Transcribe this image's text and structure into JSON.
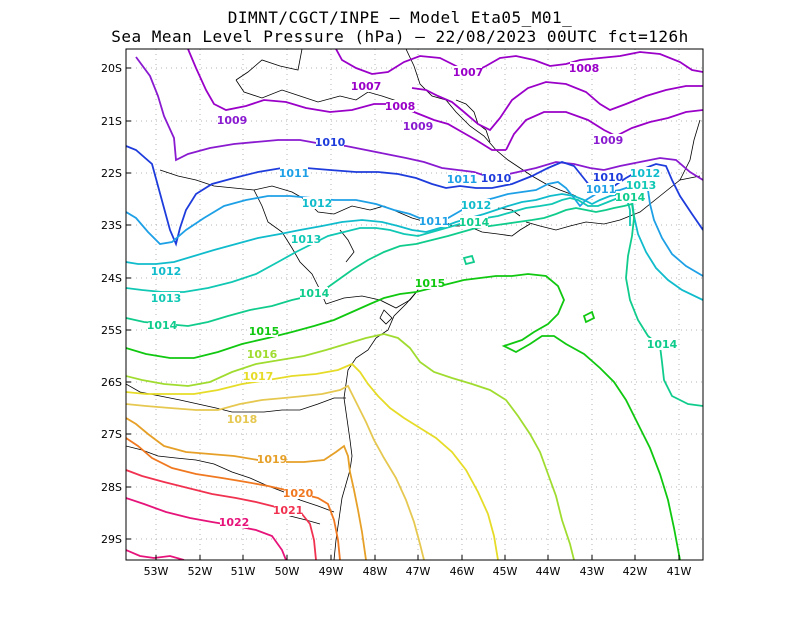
{
  "title_line1": "DIMNT/CGCT/INPE –  Model Eta05_M01_",
  "title_line2": "Sea Mean Level Pressure (hPa) – 22/08/2023 00UTC fct=126h",
  "lon_labels": [
    "53W",
    "52W",
    "51W",
    "50W",
    "49W",
    "48W",
    "47W",
    "46W",
    "45W",
    "44W",
    "43W",
    "42W",
    "41W"
  ],
  "lat_labels": [
    "20S",
    "21S",
    "22S",
    "23S",
    "24S",
    "25S",
    "26S",
    "27S",
    "28S",
    "29S"
  ],
  "colors": {
    "c1007": "#9a00c8",
    "c1008": "#9a00c8",
    "c1009": "#8a1ad0",
    "c1010": "#1e3cdc",
    "c1011": "#1ea0e6",
    "c1012": "#10bccc",
    "c1013": "#10c8b4",
    "c1014": "#10cc8c",
    "c1015": "#10c810",
    "c1016": "#a0dc30",
    "c1017": "#e6dc28",
    "c1018": "#e6c850",
    "c1019": "#e6a028",
    "c1020": "#f07820",
    "c1021": "#f03250",
    "c1022": "#e6147a",
    "coast": "#000000",
    "grid": "#b4b4b4"
  },
  "contour_labels": [
    {
      "text": "1007",
      "color": "c1007"
    },
    {
      "text": "1007",
      "color": "c1007"
    },
    {
      "text": "1008",
      "color": "c1008"
    },
    {
      "text": "1008",
      "color": "c1008"
    },
    {
      "text": "1009",
      "color": "c1009"
    },
    {
      "text": "1009",
      "color": "c1009"
    },
    {
      "text": "1009",
      "color": "c1009"
    },
    {
      "text": "1010",
      "color": "c1010"
    },
    {
      "text": "1010",
      "color": "c1010"
    },
    {
      "text": "1010",
      "color": "c1010"
    },
    {
      "text": "1011",
      "color": "c1011"
    },
    {
      "text": "1011",
      "color": "c1011"
    },
    {
      "text": "1011",
      "color": "c1011"
    },
    {
      "text": "1011",
      "color": "c1011"
    },
    {
      "text": "1012",
      "color": "c1012"
    },
    {
      "text": "1012",
      "color": "c1012"
    },
    {
      "text": "1012",
      "color": "c1012"
    },
    {
      "text": "1012",
      "color": "c1012"
    },
    {
      "text": "1013",
      "color": "c1013"
    },
    {
      "text": "1013",
      "color": "c1013"
    },
    {
      "text": "1013",
      "color": "c1013"
    },
    {
      "text": "1014",
      "color": "c1014"
    },
    {
      "text": "1014",
      "color": "c1014"
    },
    {
      "text": "1014",
      "color": "c1014"
    },
    {
      "text": "1014",
      "color": "c1014"
    },
    {
      "text": "1014",
      "color": "c1014"
    },
    {
      "text": "1015",
      "color": "c1015"
    },
    {
      "text": "1015",
      "color": "c1015"
    },
    {
      "text": "1016",
      "color": "c1016"
    },
    {
      "text": "1017",
      "color": "c1017"
    },
    {
      "text": "1018",
      "color": "c1018"
    },
    {
      "text": "1019",
      "color": "c1019"
    },
    {
      "text": "1020",
      "color": "c1020"
    },
    {
      "text": "1021",
      "color": "c1021"
    },
    {
      "text": "1022",
      "color": "c1022"
    }
  ]
}
